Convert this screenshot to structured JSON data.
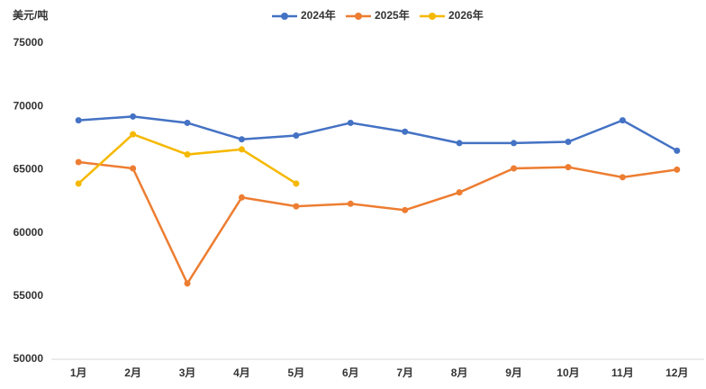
{
  "chart_data": {
    "type": "line",
    "y_label": "美元/吨",
    "categories": [
      "1月",
      "2月",
      "3月",
      "4月",
      "5月",
      "6月",
      "7月",
      "8月",
      "9月",
      "10月",
      "11月",
      "12月"
    ],
    "series": [
      {
        "name": "2024年",
        "color": "#4472c4",
        "values": [
          68900,
          69200,
          68700,
          67400,
          67700,
          68700,
          68000,
          67100,
          67100,
          67200,
          68900,
          66500
        ]
      },
      {
        "name": "2025年",
        "color": "#ed7d31",
        "values": [
          65600,
          65100,
          56000,
          62800,
          62100,
          62300,
          61800,
          63200,
          65100,
          65200,
          64400,
          65000
        ]
      },
      {
        "name": "2026年",
        "color": "#f5b800",
        "values": [
          63900,
          67800,
          66200,
          66600,
          63900,
          null,
          null,
          null,
          null,
          null,
          null,
          null
        ]
      }
    ],
    "ylim": [
      50000,
      75000
    ],
    "yticks": [
      50000,
      55000,
      60000,
      65000,
      70000,
      75000
    ],
    "grid": false,
    "legend": "top"
  }
}
